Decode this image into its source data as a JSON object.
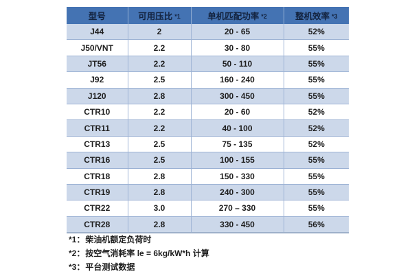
{
  "colors": {
    "header_bg": "#4473b3",
    "header_text": "#13233f",
    "row_alt": "#ccd8ea",
    "grid_line": "#9cb2d4",
    "table_bottom": "#9db0c9",
    "body_text": "#1f1f1f"
  },
  "table": {
    "headers": [
      {
        "label": "型号",
        "note": ""
      },
      {
        "label": "可用压比",
        "note": "*1"
      },
      {
        "label": "单机匹配功率",
        "note": "*2"
      },
      {
        "label": "整机效率",
        "note": "*3"
      }
    ],
    "rows": [
      [
        "J44",
        "2",
        "20 - 65",
        "52%"
      ],
      [
        "J50/VNT",
        "2.2",
        "30 - 80",
        "55%"
      ],
      [
        "JT56",
        "2.2",
        "50 - 110",
        "55%"
      ],
      [
        "J92",
        "2.5",
        "160 - 240",
        "55%"
      ],
      [
        "J120",
        "2.8",
        "300 - 450",
        "55%"
      ],
      [
        "CTR10",
        "2.2",
        "20 - 60",
        "52%"
      ],
      [
        "CTR11",
        "2.2",
        "40 - 100",
        "52%"
      ],
      [
        "CTR13",
        "2.5",
        "75 - 135",
        "52%"
      ],
      [
        "CTR16",
        "2.5",
        "100 - 155",
        "55%"
      ],
      [
        "CTR18",
        "2.8",
        "150 - 330",
        "55%"
      ],
      [
        "CTR19",
        "2.8",
        "240 - 300",
        "55%"
      ],
      [
        "CTR22",
        "3.0",
        "270 – 330",
        "55%"
      ],
      [
        "CTR28",
        "2.8",
        "330 - 450",
        "56%"
      ]
    ]
  },
  "footnotes": [
    {
      "marker": "*1：",
      "text": "柴油机额定负荷时"
    },
    {
      "marker": "*2：",
      "text": "按空气消耗率 le = 6kg/kW*h 计算"
    },
    {
      "marker": "*3：",
      "text": "平台测试数据"
    }
  ]
}
